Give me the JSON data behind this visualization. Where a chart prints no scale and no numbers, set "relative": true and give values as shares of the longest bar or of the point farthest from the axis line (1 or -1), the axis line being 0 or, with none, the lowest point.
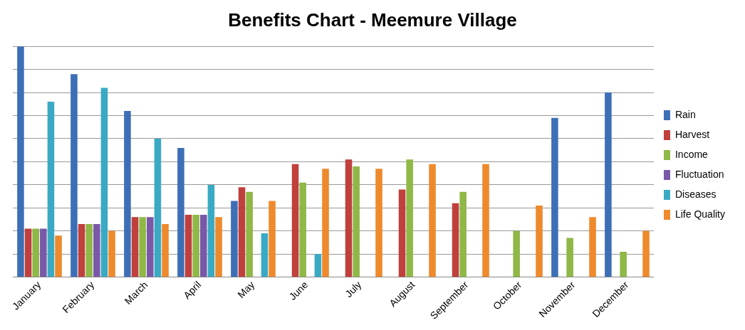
{
  "chart_data": {
    "type": "bar",
    "title": "Benefits Chart - Meemure Village",
    "relative": true,
    "grid": "y",
    "legend": "right",
    "categories": [
      "January",
      "February",
      "March",
      "April",
      "May",
      "June",
      "July",
      "August",
      "September",
      "October",
      "November",
      "December"
    ],
    "series": [
      {
        "name": "Rain",
        "color": "#3d6fb6",
        "values": [
          1,
          0.88,
          0.72,
          0.56,
          0.33,
          null,
          null,
          null,
          null,
          null,
          0.69,
          0.8
        ]
      },
      {
        "name": "Harvest",
        "color": "#c0403d",
        "values": [
          0.21,
          0.23,
          0.26,
          0.27,
          0.39,
          0.49,
          0.51,
          0.38,
          0.32,
          null,
          null,
          null
        ]
      },
      {
        "name": "Income",
        "color": "#8fb847",
        "values": [
          0.21,
          0.23,
          0.26,
          0.27,
          0.37,
          0.41,
          0.48,
          0.51,
          0.37,
          0.2,
          0.17,
          0.11
        ]
      },
      {
        "name": "Fluctuation",
        "color": "#7a58a8",
        "values": [
          0.21,
          0.23,
          0.26,
          0.27,
          null,
          null,
          null,
          null,
          null,
          null,
          null,
          null
        ]
      },
      {
        "name": "Diseases",
        "color": "#3aaac4",
        "values": [
          0.76,
          0.82,
          0.6,
          0.4,
          0.19,
          0.1,
          null,
          null,
          null,
          null,
          null,
          null
        ]
      },
      {
        "name": "Life Quality",
        "color": "#ee8a2c",
        "values": [
          0.18,
          0.2,
          0.23,
          0.26,
          0.33,
          0.47,
          0.47,
          0.49,
          0.49,
          0.31,
          0.26,
          0.2
        ]
      }
    ]
  }
}
